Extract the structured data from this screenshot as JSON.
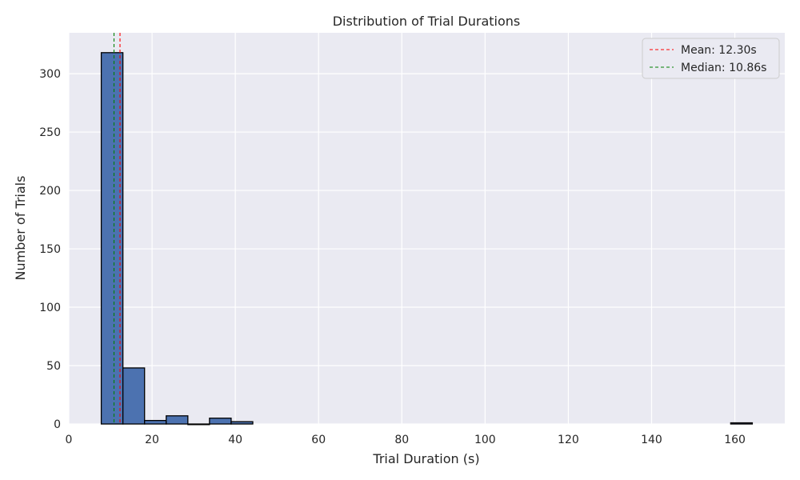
{
  "chart_data": {
    "type": "bar",
    "title": "Distribution of Trial Durations",
    "xlabel": "Trial Duration (s)",
    "ylabel": "Number of Trials",
    "xlim": [
      0,
      172
    ],
    "ylim": [
      0,
      335
    ],
    "xticks": [
      0,
      20,
      40,
      60,
      80,
      100,
      120,
      140,
      160
    ],
    "yticks": [
      0,
      50,
      100,
      150,
      200,
      250,
      300
    ],
    "grid": true,
    "legend_position": "top-right",
    "bins": [
      {
        "x0": 7.8,
        "x1": 13.0,
        "count": 318
      },
      {
        "x0": 13.0,
        "x1": 18.2,
        "count": 48
      },
      {
        "x0": 18.2,
        "x1": 23.4,
        "count": 3
      },
      {
        "x0": 23.4,
        "x1": 28.6,
        "count": 7
      },
      {
        "x0": 28.6,
        "x1": 33.8,
        "count": 0
      },
      {
        "x0": 33.8,
        "x1": 39.0,
        "count": 5
      },
      {
        "x0": 39.0,
        "x1": 44.2,
        "count": 2
      },
      {
        "x0": 159.0,
        "x1": 164.2,
        "count": 1
      }
    ],
    "bar_color": "#4c72b0",
    "bar_edge_color": "#000000",
    "reference_lines": [
      {
        "label": "Mean: 12.30s",
        "value": 12.3,
        "color": "#ff0000"
      },
      {
        "label": "Median: 10.86s",
        "value": 10.86,
        "color": "#008000"
      }
    ]
  }
}
